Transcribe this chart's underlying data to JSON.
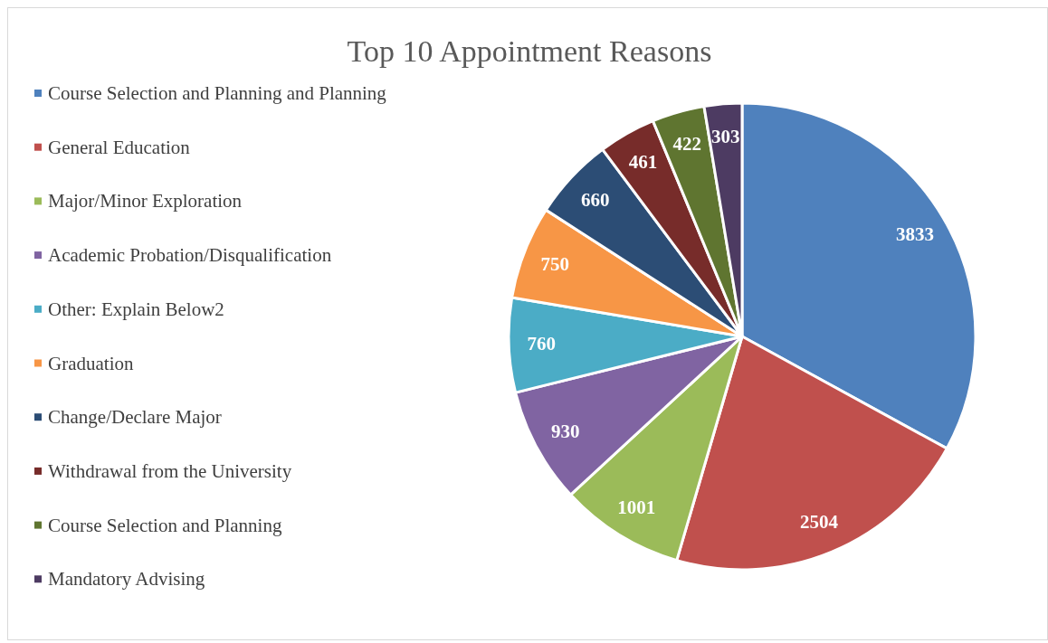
{
  "chart_data": {
    "type": "pie",
    "title": "Top 10 Appointment Reasons",
    "categories": [
      "Course Selection and Planning and Planning",
      "General Education",
      "Major/Minor Exploration",
      "Academic Probation/Disqualification",
      "Other: Explain Below2",
      "Graduation",
      "Change/Declare Major",
      "Withdrawal from the University",
      "Course Selection and Planning",
      "Mandatory Advising"
    ],
    "values": [
      3833,
      2504,
      1001,
      930,
      760,
      750,
      660,
      461,
      422,
      303
    ],
    "colors": [
      "#4f81bd",
      "#c0504d",
      "#9bbb59",
      "#8064a2",
      "#4bacc6",
      "#f79646",
      "#2c4d75",
      "#772c2a",
      "#5f7530",
      "#4d3b62"
    ],
    "data_labels": true,
    "legend": "left"
  }
}
